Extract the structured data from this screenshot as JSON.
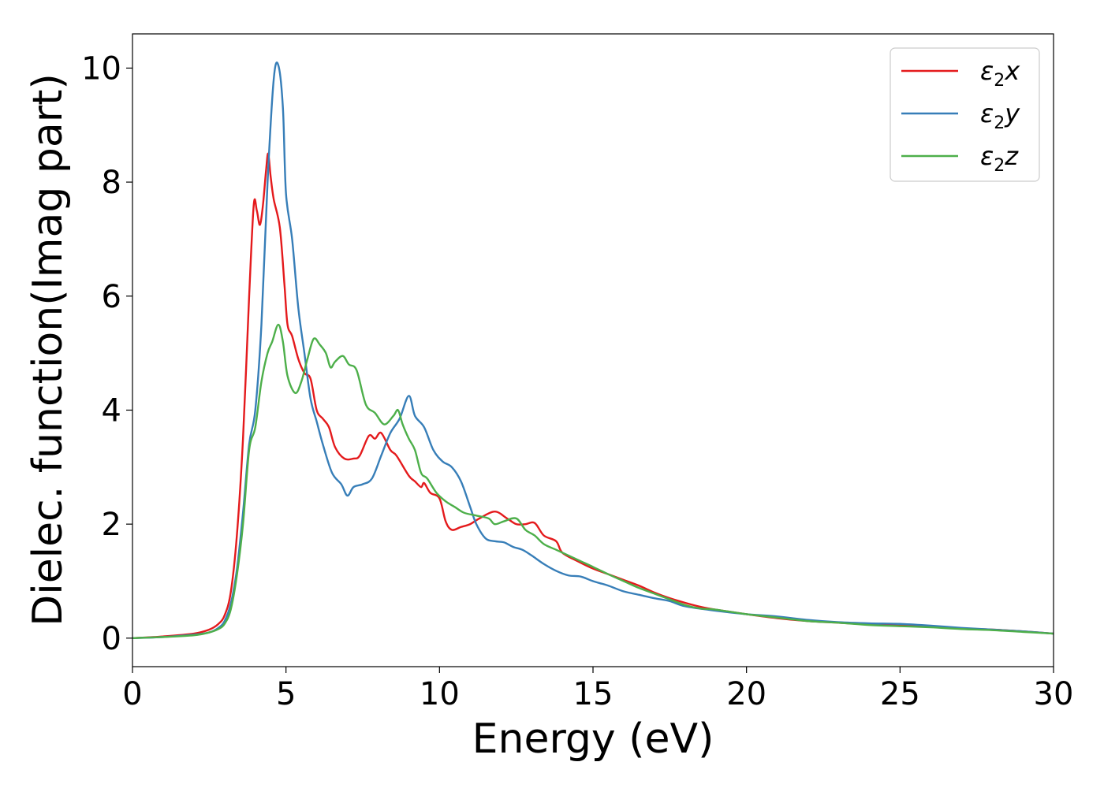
{
  "chart_data": {
    "type": "line",
    "xlabel": "Energy (eV)",
    "ylabel": "Dielec. function(Imag part)",
    "xlim": [
      0,
      30
    ],
    "ylim": [
      -0.5,
      10.6
    ],
    "xticks": [
      "0",
      "5",
      "10",
      "15",
      "20",
      "25",
      "30"
    ],
    "yticks": [
      "0",
      "2",
      "4",
      "6",
      "8",
      "10"
    ],
    "grid": false,
    "legend_position": "top-right",
    "series": [
      {
        "name": "ε₂x",
        "legend_base": "ε",
        "legend_sub": "2",
        "legend_tail": "x",
        "color": "#e41a1c",
        "points": [
          [
            0,
            0
          ],
          [
            1,
            0.03
          ],
          [
            2,
            0.08
          ],
          [
            2.5,
            0.15
          ],
          [
            2.8,
            0.25
          ],
          [
            3.0,
            0.4
          ],
          [
            3.2,
            0.8
          ],
          [
            3.4,
            1.8
          ],
          [
            3.6,
            3.5
          ],
          [
            3.8,
            6.0
          ],
          [
            3.95,
            7.6
          ],
          [
            4.05,
            7.5
          ],
          [
            4.15,
            7.25
          ],
          [
            4.25,
            7.6
          ],
          [
            4.35,
            8.2
          ],
          [
            4.42,
            8.5
          ],
          [
            4.5,
            8.1
          ],
          [
            4.6,
            7.7
          ],
          [
            4.8,
            7.2
          ],
          [
            4.95,
            6.2
          ],
          [
            5.05,
            5.5
          ],
          [
            5.2,
            5.3
          ],
          [
            5.4,
            4.9
          ],
          [
            5.6,
            4.65
          ],
          [
            5.8,
            4.55
          ],
          [
            6.0,
            4.0
          ],
          [
            6.2,
            3.85
          ],
          [
            6.4,
            3.7
          ],
          [
            6.6,
            3.35
          ],
          [
            6.9,
            3.15
          ],
          [
            7.2,
            3.15
          ],
          [
            7.4,
            3.2
          ],
          [
            7.7,
            3.55
          ],
          [
            7.9,
            3.5
          ],
          [
            8.1,
            3.6
          ],
          [
            8.4,
            3.3
          ],
          [
            8.6,
            3.2
          ],
          [
            9.0,
            2.85
          ],
          [
            9.2,
            2.75
          ],
          [
            9.4,
            2.65
          ],
          [
            9.5,
            2.72
          ],
          [
            9.7,
            2.55
          ],
          [
            10.0,
            2.45
          ],
          [
            10.2,
            2.05
          ],
          [
            10.4,
            1.9
          ],
          [
            10.7,
            1.95
          ],
          [
            11.0,
            2.0
          ],
          [
            11.3,
            2.1
          ],
          [
            11.8,
            2.22
          ],
          [
            12.2,
            2.1
          ],
          [
            12.5,
            2.0
          ],
          [
            12.8,
            2.0
          ],
          [
            13.1,
            2.02
          ],
          [
            13.4,
            1.8
          ],
          [
            13.8,
            1.7
          ],
          [
            14.0,
            1.5
          ],
          [
            14.5,
            1.35
          ],
          [
            15.0,
            1.22
          ],
          [
            15.5,
            1.12
          ],
          [
            16.0,
            1.02
          ],
          [
            16.5,
            0.92
          ],
          [
            17.0,
            0.8
          ],
          [
            17.5,
            0.7
          ],
          [
            18.0,
            0.62
          ],
          [
            18.5,
            0.55
          ],
          [
            19.0,
            0.5
          ],
          [
            20.0,
            0.42
          ],
          [
            21.0,
            0.35
          ],
          [
            22.0,
            0.3
          ],
          [
            23.0,
            0.27
          ],
          [
            24.0,
            0.24
          ],
          [
            25.0,
            0.22
          ],
          [
            26.0,
            0.2
          ],
          [
            27.0,
            0.17
          ],
          [
            28.0,
            0.15
          ],
          [
            29.0,
            0.12
          ],
          [
            30.0,
            0.08
          ]
        ]
      },
      {
        "name": "ε₂y",
        "legend_base": "ε",
        "legend_sub": "2",
        "legend_tail": "y",
        "color": "#377eb8",
        "points": [
          [
            0,
            0
          ],
          [
            1,
            0.02
          ],
          [
            2,
            0.06
          ],
          [
            2.5,
            0.1
          ],
          [
            2.8,
            0.18
          ],
          [
            3.0,
            0.3
          ],
          [
            3.2,
            0.6
          ],
          [
            3.4,
            1.2
          ],
          [
            3.6,
            2.2
          ],
          [
            3.8,
            3.4
          ],
          [
            4.0,
            4.0
          ],
          [
            4.2,
            5.5
          ],
          [
            4.4,
            8.0
          ],
          [
            4.6,
            9.8
          ],
          [
            4.75,
            10.05
          ],
          [
            4.9,
            9.3
          ],
          [
            5.0,
            7.8
          ],
          [
            5.2,
            7.0
          ],
          [
            5.4,
            5.8
          ],
          [
            5.6,
            5.0
          ],
          [
            5.8,
            4.2
          ],
          [
            6.0,
            3.8
          ],
          [
            6.2,
            3.4
          ],
          [
            6.5,
            2.9
          ],
          [
            6.8,
            2.7
          ],
          [
            7.0,
            2.5
          ],
          [
            7.2,
            2.65
          ],
          [
            7.5,
            2.7
          ],
          [
            7.8,
            2.8
          ],
          [
            8.1,
            3.2
          ],
          [
            8.4,
            3.6
          ],
          [
            8.7,
            3.85
          ],
          [
            9.0,
            4.25
          ],
          [
            9.2,
            3.9
          ],
          [
            9.5,
            3.7
          ],
          [
            9.8,
            3.3
          ],
          [
            10.1,
            3.1
          ],
          [
            10.4,
            3.0
          ],
          [
            10.7,
            2.75
          ],
          [
            11.0,
            2.3
          ],
          [
            11.2,
            2.0
          ],
          [
            11.5,
            1.75
          ],
          [
            11.8,
            1.7
          ],
          [
            12.1,
            1.68
          ],
          [
            12.4,
            1.6
          ],
          [
            12.7,
            1.55
          ],
          [
            13.0,
            1.45
          ],
          [
            13.4,
            1.3
          ],
          [
            13.8,
            1.18
          ],
          [
            14.2,
            1.1
          ],
          [
            14.6,
            1.08
          ],
          [
            15.0,
            1.0
          ],
          [
            15.5,
            0.92
          ],
          [
            16.0,
            0.82
          ],
          [
            16.5,
            0.76
          ],
          [
            17.0,
            0.7
          ],
          [
            17.5,
            0.65
          ],
          [
            18.0,
            0.56
          ],
          [
            19.0,
            0.48
          ],
          [
            20.0,
            0.42
          ],
          [
            21.0,
            0.38
          ],
          [
            22.0,
            0.32
          ],
          [
            23.0,
            0.28
          ],
          [
            24.0,
            0.26
          ],
          [
            25.0,
            0.25
          ],
          [
            26.0,
            0.22
          ],
          [
            27.0,
            0.18
          ],
          [
            28.0,
            0.15
          ],
          [
            29.0,
            0.12
          ],
          [
            30.0,
            0.08
          ]
        ]
      },
      {
        "name": "ε₂z",
        "legend_base": "ε",
        "legend_sub": "2",
        "legend_tail": "z",
        "color": "#4daf4a",
        "points": [
          [
            0,
            0
          ],
          [
            1,
            0.02
          ],
          [
            2,
            0.05
          ],
          [
            2.5,
            0.1
          ],
          [
            2.8,
            0.16
          ],
          [
            3.0,
            0.25
          ],
          [
            3.2,
            0.5
          ],
          [
            3.4,
            1.1
          ],
          [
            3.6,
            2.0
          ],
          [
            3.8,
            3.3
          ],
          [
            4.0,
            3.7
          ],
          [
            4.2,
            4.5
          ],
          [
            4.4,
            5.0
          ],
          [
            4.55,
            5.2
          ],
          [
            4.75,
            5.5
          ],
          [
            4.9,
            5.2
          ],
          [
            5.05,
            4.6
          ],
          [
            5.3,
            4.3
          ],
          [
            5.5,
            4.5
          ],
          [
            5.7,
            4.9
          ],
          [
            5.9,
            5.25
          ],
          [
            6.1,
            5.15
          ],
          [
            6.3,
            5.0
          ],
          [
            6.45,
            4.75
          ],
          [
            6.6,
            4.85
          ],
          [
            6.85,
            4.95
          ],
          [
            7.05,
            4.8
          ],
          [
            7.3,
            4.7
          ],
          [
            7.6,
            4.1
          ],
          [
            7.9,
            3.95
          ],
          [
            8.2,
            3.75
          ],
          [
            8.5,
            3.9
          ],
          [
            8.65,
            4.0
          ],
          [
            8.8,
            3.75
          ],
          [
            9.0,
            3.5
          ],
          [
            9.2,
            3.3
          ],
          [
            9.4,
            2.9
          ],
          [
            9.6,
            2.8
          ],
          [
            9.9,
            2.55
          ],
          [
            10.2,
            2.4
          ],
          [
            10.5,
            2.3
          ],
          [
            10.8,
            2.2
          ],
          [
            11.2,
            2.15
          ],
          [
            11.6,
            2.1
          ],
          [
            11.8,
            2.0
          ],
          [
            12.1,
            2.05
          ],
          [
            12.5,
            2.1
          ],
          [
            12.8,
            1.9
          ],
          [
            13.1,
            1.8
          ],
          [
            13.4,
            1.65
          ],
          [
            13.8,
            1.55
          ],
          [
            14.2,
            1.45
          ],
          [
            14.6,
            1.35
          ],
          [
            15.0,
            1.25
          ],
          [
            15.5,
            1.12
          ],
          [
            16.0,
            1.0
          ],
          [
            16.5,
            0.88
          ],
          [
            17.0,
            0.78
          ],
          [
            17.5,
            0.68
          ],
          [
            18.0,
            0.58
          ],
          [
            18.5,
            0.52
          ],
          [
            19.0,
            0.5
          ],
          [
            20.0,
            0.42
          ],
          [
            21.0,
            0.36
          ],
          [
            22.0,
            0.3
          ],
          [
            23.0,
            0.27
          ],
          [
            24.0,
            0.23
          ],
          [
            25.0,
            0.21
          ],
          [
            26.0,
            0.19
          ],
          [
            27.0,
            0.16
          ],
          [
            28.0,
            0.14
          ],
          [
            29.0,
            0.11
          ],
          [
            30.0,
            0.08
          ]
        ]
      }
    ]
  }
}
